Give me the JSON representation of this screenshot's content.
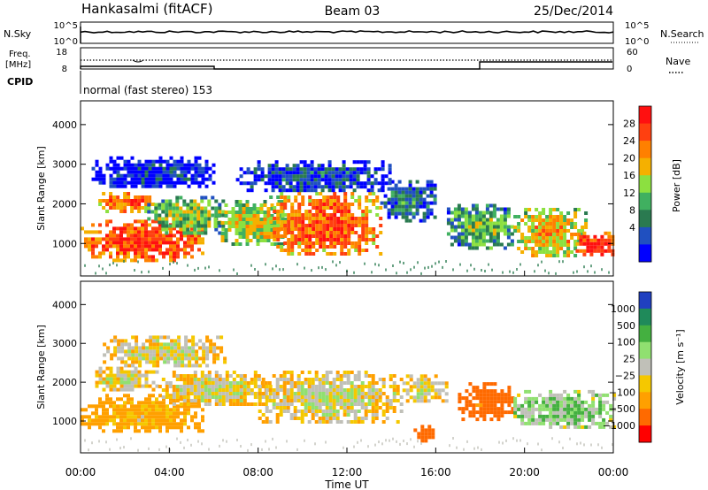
{
  "header": {
    "station": "Hankasalmi (fitACF)",
    "beam": "Beam 03",
    "date": "25/Dec/2014"
  },
  "top_panels": {
    "nsky_label": "N.Sky",
    "nsearch_label": "N.Search",
    "nsky_ticks": [
      "10^5",
      "10^0"
    ],
    "nsky_right_ticks": [
      "10^5",
      "10^0"
    ],
    "freq_label_line1": "Freq.",
    "freq_label_line2": "[MHz]",
    "freq_ticks": [
      "18",
      "8"
    ],
    "nave_ticks": [
      "60",
      "0"
    ],
    "nave_label": "Nave",
    "cpid_label": "CPID",
    "cpid_text": "normal (fast stereo) 153"
  },
  "chart_data": [
    {
      "type": "heatmap",
      "name": "power-panel",
      "ylabel": "Slant Range [km]",
      "yticks": [
        "4000",
        "3000",
        "2000",
        "1000"
      ],
      "ylim": [
        180,
        4600
      ],
      "xlim_hours": [
        0,
        24
      ],
      "colorbar_label": "Power [dB]",
      "colorbar_ticks": [
        "28",
        "24",
        "20",
        "16",
        "12",
        "8",
        "4"
      ],
      "colorbar_colors": [
        "#ff1010",
        "#ff4010",
        "#ff8000",
        "#f5b000",
        "#8ce040",
        "#40b060",
        "#2a7a50",
        "#2050c0",
        "#0000ff"
      ],
      "regions": [
        {
          "t0": 0.0,
          "t1": 5.5,
          "r0": 600,
          "r1": 1600,
          "level": 26
        },
        {
          "t0": 0.8,
          "t1": 3.2,
          "r0": 1800,
          "r1": 2300,
          "level": 24
        },
        {
          "t0": 3.0,
          "t1": 6.5,
          "r0": 1300,
          "r1": 2200,
          "level": 16
        },
        {
          "t0": 6.0,
          "t1": 9.5,
          "r0": 1000,
          "r1": 2100,
          "level": 18
        },
        {
          "t0": 8.5,
          "t1": 13.5,
          "r0": 700,
          "r1": 2300,
          "level": 24
        },
        {
          "t0": 13.5,
          "t1": 16.0,
          "r0": 1600,
          "r1": 2600,
          "level": 10
        },
        {
          "t0": 16.5,
          "t1": 19.5,
          "r0": 900,
          "r1": 2000,
          "level": 14
        },
        {
          "t0": 19.5,
          "t1": 22.8,
          "r0": 700,
          "r1": 1900,
          "level": 20
        },
        {
          "t0": 22.3,
          "t1": 24.0,
          "r0": 700,
          "r1": 1300,
          "level": 28
        },
        {
          "t0": 0.5,
          "t1": 6.0,
          "r0": 2400,
          "r1": 3200,
          "level": 6
        },
        {
          "t0": 7.0,
          "t1": 14.0,
          "r0": 2300,
          "r1": 3100,
          "level": 8
        }
      ]
    },
    {
      "type": "heatmap",
      "name": "velocity-panel",
      "ylabel": "Slant Range [km]",
      "yticks": [
        "4000",
        "3000",
        "2000",
        "1000"
      ],
      "ylim": [
        180,
        4600
      ],
      "xlim_hours": [
        0,
        24
      ],
      "xticks": [
        "00:00",
        "04:00",
        "08:00",
        "12:00",
        "16:00",
        "20:00",
        "00:00"
      ],
      "xlabel": "Time UT",
      "colorbar_label": "Velocity [m s⁻¹]",
      "colorbar_ticks": [
        "1000",
        "500",
        "100",
        "25",
        "−25",
        "−100",
        "−500",
        "−1000"
      ],
      "colorbar_colors": [
        "#2040c0",
        "#1f8a5a",
        "#44b040",
        "#90e070",
        "#c0c0b8",
        "#f5c800",
        "#ffa000",
        "#ff6a00",
        "#ff0000"
      ],
      "regions": [
        {
          "t0": 0.0,
          "t1": 5.5,
          "r0": 700,
          "r1": 1700,
          "level": -80
        },
        {
          "t0": 0.5,
          "t1": 3.5,
          "r0": 1800,
          "r1": 2400,
          "level": 0
        },
        {
          "t0": 3.5,
          "t1": 8.5,
          "r0": 1400,
          "r1": 2300,
          "level": 0
        },
        {
          "t0": 8.0,
          "t1": 14.5,
          "r0": 1000,
          "r1": 2300,
          "level": 0
        },
        {
          "t0": 14.5,
          "t1": 16.5,
          "r0": 1500,
          "r1": 2200,
          "level": 0
        },
        {
          "t0": 17.0,
          "t1": 19.5,
          "r0": 1000,
          "r1": 2000,
          "level": -300
        },
        {
          "t0": 19.5,
          "t1": 24.0,
          "r0": 800,
          "r1": 1800,
          "level": 60
        },
        {
          "t0": 1.0,
          "t1": 6.5,
          "r0": 2400,
          "r1": 3200,
          "level": 0
        },
        {
          "t0": 15.0,
          "t1": 15.8,
          "r0": 500,
          "r1": 900,
          "level": -300
        }
      ]
    }
  ]
}
